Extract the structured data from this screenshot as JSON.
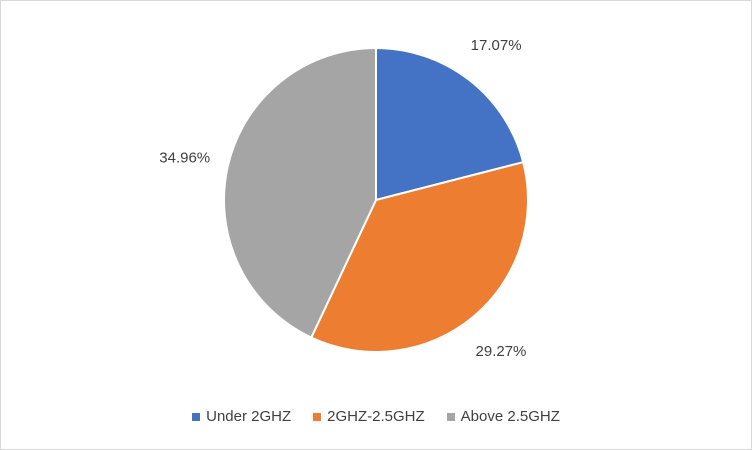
{
  "chart_data": {
    "type": "pie",
    "title": "",
    "categories": [
      "Under 2GHZ",
      "2GHZ-2.5GHZ",
      "Above 2.5GHZ"
    ],
    "values": [
      17.07,
      29.27,
      34.96
    ],
    "labels": [
      "17.07%",
      "29.27%",
      "34.96%"
    ],
    "colors": [
      "#4472c4",
      "#ed7d31",
      "#a5a5a5"
    ],
    "start_angle_deg": 0,
    "direction": "clockwise",
    "legend_position": "bottom",
    "data_labels": "outside-end"
  }
}
